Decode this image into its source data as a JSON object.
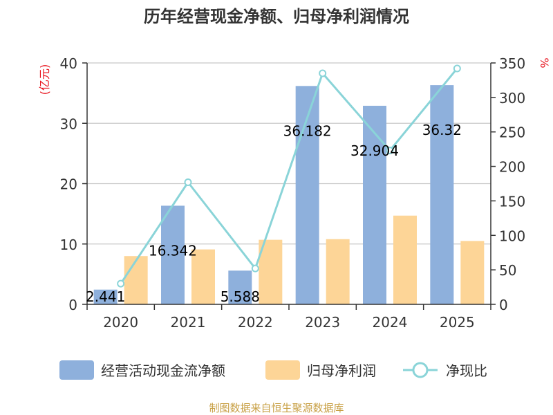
{
  "chart_data": {
    "type": "bar",
    "title": "历年经营现金净额、归母净利润情况",
    "categories": [
      "2020",
      "2021",
      "2022",
      "2023",
      "2024",
      "2025"
    ],
    "series": [
      {
        "name": "经营活动现金流净额",
        "type": "bar",
        "axis": "left",
        "values": [
          2.441,
          16.342,
          5.588,
          36.182,
          32.904,
          36.32
        ]
      },
      {
        "name": "归母净利润",
        "type": "bar",
        "axis": "left",
        "values": [
          8.0,
          9.1,
          10.7,
          10.8,
          14.7,
          10.5
        ]
      },
      {
        "name": "净现比",
        "type": "line",
        "axis": "right",
        "values": [
          30,
          177,
          52,
          335,
          223,
          342
        ]
      }
    ],
    "data_labels": [
      "2.441",
      "16.342",
      "5.588",
      "36.182",
      "32.904",
      "36.32"
    ],
    "left_axis": {
      "unit": "(亿元)",
      "ylim": [
        0,
        40
      ],
      "ticks": [
        "0",
        "10",
        "20",
        "30",
        "40"
      ]
    },
    "right_axis": {
      "unit": "%",
      "ylim": [
        0,
        350
      ],
      "ticks": [
        "0",
        "50",
        "100",
        "150",
        "200",
        "250",
        "300",
        "350"
      ]
    },
    "grid": true,
    "legend_position": "bottom",
    "colors": {
      "cashflow_bar": "#8eb0dc",
      "profit_bar": "#fdd597",
      "ratio_line": "#8ad4d8",
      "unit_label": "#e8141e",
      "source_text": "#c8a045"
    }
  },
  "source": "制图数据来自恒生聚源数据库"
}
